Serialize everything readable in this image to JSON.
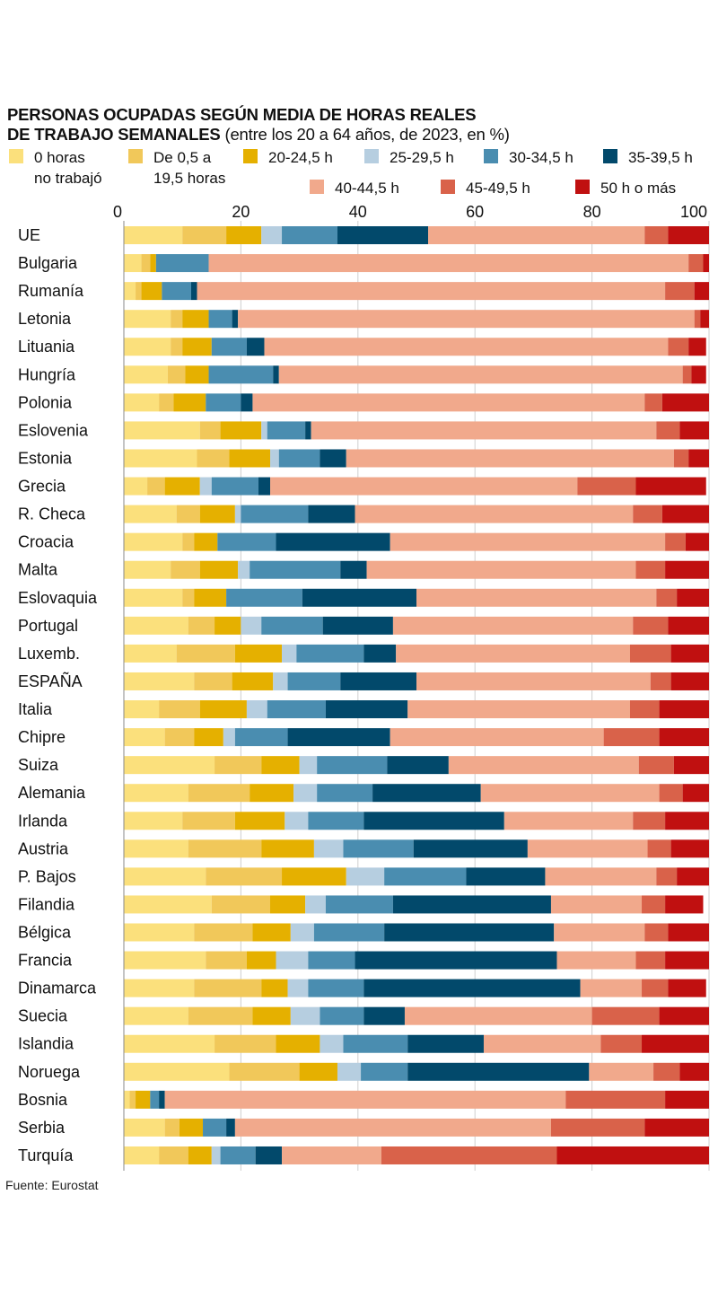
{
  "title_line1": "PERSONAS OCUPADAS SEGÚN MEDIA DE HORAS REALES",
  "title_line2_bold": "DE TRABAJO SEMANALES",
  "title_line2_normal": " (entre los 20 a 64 años, de 2023, en %)",
  "source": "Fuente: Eurostat",
  "chart_data": {
    "type": "bar",
    "orientation": "horizontal",
    "stacked": true,
    "xlim": [
      0,
      100
    ],
    "xticks": [
      "0",
      "20",
      "40",
      "60",
      "80",
      "100"
    ],
    "grid": true,
    "legend": [
      {
        "label": "0 horas",
        "label2": "no trabajó",
        "color": "#fbe07c"
      },
      {
        "label": "De 0,5 a",
        "label2": "19,5 horas",
        "color": "#f1c85a"
      },
      {
        "label": "20-24,5 h",
        "color": "#e5b000"
      },
      {
        "label": "25-29,5 h",
        "color": "#b6cee0"
      },
      {
        "label": "30-34,5 h",
        "color": "#4a8db0"
      },
      {
        "label": "35-39,5 h",
        "color": "#02496b"
      },
      {
        "label": "40-44,5 h",
        "color": "#f1a98c"
      },
      {
        "label": "45-49,5 h",
        "color": "#d9624a"
      },
      {
        "label": "50 h o más",
        "color": "#c01010"
      }
    ],
    "categories": [
      "UE",
      "Bulgaria",
      "Rumanía",
      "Letonia",
      "Lituania",
      "Hungría",
      "Polonia",
      "Eslovenia",
      "Estonia",
      "Grecia",
      "R. Checa",
      "Croacia",
      "Malta",
      "Eslovaquia",
      "Portugal",
      "Luxemb.",
      "ESPAÑA",
      "Italia",
      "Chipre",
      "Suiza",
      "Alemania",
      "Irlanda",
      "Austria",
      "P. Bajos",
      "Filandia",
      "Bélgica",
      "Francia",
      "Dinamarca",
      "Suecia",
      "Islandia",
      "Noruega",
      "Bosnia",
      "Serbia",
      "Turquía"
    ],
    "series": [
      {
        "name": "0 horas no trabajó",
        "values": [
          10,
          3,
          2,
          8,
          8,
          7.5,
          6,
          13,
          12.5,
          4,
          9,
          10,
          8,
          10,
          11,
          9,
          12,
          6,
          7,
          15.5,
          11,
          10,
          11,
          14,
          15,
          12,
          14,
          12,
          11,
          15.5,
          18,
          1,
          7,
          6
        ]
      },
      {
        "name": "De 0,5 a 19,5 horas",
        "values": [
          7.5,
          1.5,
          1,
          2,
          2,
          3,
          2.5,
          3.5,
          5.5,
          3,
          4,
          2,
          5,
          2,
          4.5,
          10,
          6.5,
          7,
          5,
          8,
          10.5,
          9,
          12.5,
          13,
          10,
          10,
          7,
          11.5,
          11,
          10.5,
          12,
          1,
          2.5,
          5
        ]
      },
      {
        "name": "20-24,5 h",
        "values": [
          6,
          1,
          3.5,
          4.5,
          5,
          4,
          5.5,
          7,
          7,
          6,
          6,
          4,
          6.5,
          5.5,
          4.5,
          8,
          7,
          8,
          5,
          6.5,
          7.5,
          8.5,
          9,
          11,
          6,
          6.5,
          5,
          4.5,
          6.5,
          7.5,
          6.5,
          2.5,
          4,
          4
        ]
      },
      {
        "name": "25-29,5 h",
        "values": [
          3.5,
          0,
          0,
          0,
          0,
          0,
          0,
          1,
          1.5,
          2,
          1,
          0,
          2,
          0,
          3.5,
          2.5,
          2.5,
          3.5,
          2,
          3,
          4,
          4,
          5,
          6.5,
          3.5,
          4,
          5.5,
          3.5,
          5,
          4,
          4,
          0,
          0,
          1.5
        ]
      },
      {
        "name": "30-34,5 h",
        "values": [
          9.5,
          9,
          5,
          4,
          6,
          11,
          6,
          6.5,
          7,
          8,
          11.5,
          10,
          15.5,
          13,
          10.5,
          11.5,
          9,
          10,
          9,
          12,
          9.5,
          9.5,
          12,
          14,
          11.5,
          12,
          8,
          9.5,
          7.5,
          11,
          8,
          1.5,
          4,
          6
        ]
      },
      {
        "name": "35-39,5 h",
        "values": [
          15.5,
          0,
          1,
          1,
          3,
          1,
          2,
          1,
          4.5,
          2,
          8,
          19.5,
          4.5,
          19.5,
          12,
          5.5,
          13,
          14,
          17.5,
          10.5,
          18.5,
          24,
          19.5,
          13.5,
          27,
          29,
          34.5,
          37,
          7,
          13,
          31,
          1,
          1.5,
          4.5
        ]
      },
      {
        "name": "40-44,5 h",
        "values": [
          37,
          82,
          80,
          78,
          69,
          69,
          67,
          59,
          56,
          52.5,
          47.5,
          47,
          46,
          41,
          41,
          40,
          40,
          38,
          36.5,
          32.5,
          30.5,
          22,
          20.5,
          19,
          15.5,
          15.5,
          13.5,
          10.5,
          32,
          20,
          11,
          68.5,
          54,
          17
        ]
      },
      {
        "name": "45-49,5 h",
        "values": [
          4,
          2.5,
          5,
          1,
          3.5,
          1.5,
          3,
          4,
          2.5,
          10,
          5,
          3.5,
          5,
          3.5,
          6,
          7,
          3.5,
          5,
          9.5,
          6,
          4,
          5.5,
          4,
          3.5,
          4,
          4,
          5,
          4.5,
          11.5,
          7,
          4.5,
          17,
          16,
          30
        ]
      },
      {
        "name": "50 h o más",
        "values": [
          7,
          1,
          3,
          1.5,
          3,
          2.5,
          8.5,
          6.5,
          3.5,
          12,
          8.5,
          4.5,
          7.5,
          5.5,
          7.5,
          6.5,
          6.5,
          8.5,
          8.5,
          6,
          4.5,
          8,
          7,
          5.5,
          6.5,
          7.5,
          8.5,
          6.5,
          8.5,
          12,
          5.5,
          7.5,
          11,
          26.5
        ]
      }
    ]
  }
}
